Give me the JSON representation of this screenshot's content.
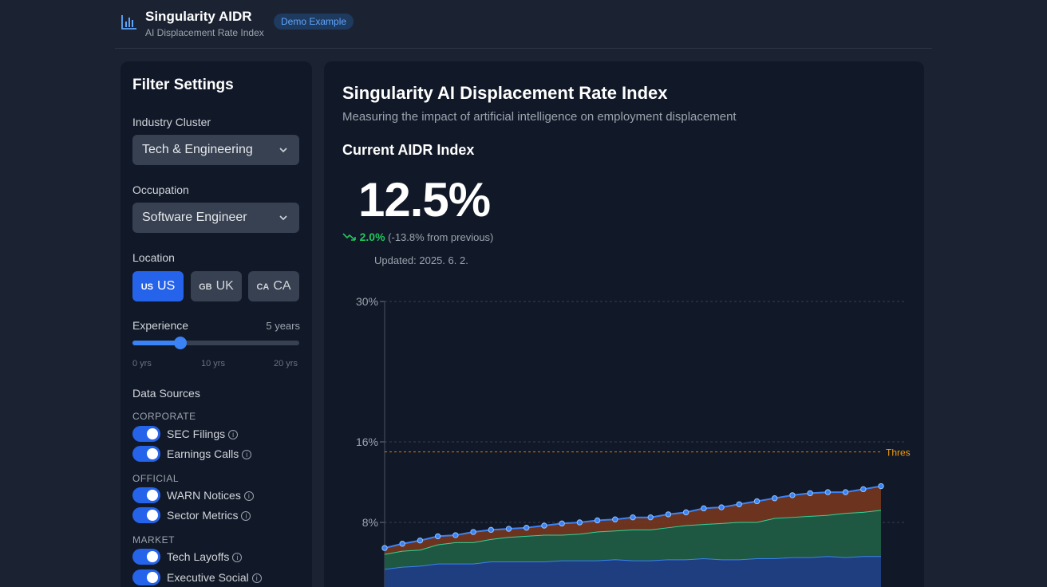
{
  "header": {
    "title": "Singularity AIDR",
    "subtitle": "AI Displacement Rate Index",
    "badge": "Demo Example",
    "logo_icon": "bar-chart-icon"
  },
  "sidebar": {
    "title": "Filter Settings",
    "industry": {
      "label": "Industry Cluster",
      "value": "Tech & Engineering"
    },
    "occupation": {
      "label": "Occupation",
      "value": "Software Engineer"
    },
    "location": {
      "label": "Location",
      "options": [
        {
          "code": "US",
          "label": "US",
          "active": true
        },
        {
          "code": "GB",
          "label": "UK",
          "active": false
        },
        {
          "code": "CA",
          "label": "CA",
          "active": false
        }
      ]
    },
    "experience": {
      "label": "Experience",
      "value_text": "5 years",
      "value": 5,
      "min": 0,
      "max": 20,
      "ticks": [
        "0 yrs",
        "10 yrs",
        "20 yrs"
      ]
    },
    "data_sources": {
      "label": "Data Sources",
      "groups": [
        {
          "name": "CORPORATE",
          "items": [
            {
              "label": "SEC Filings",
              "on": true
            },
            {
              "label": "Earnings Calls",
              "on": true
            }
          ]
        },
        {
          "name": "OFFICIAL",
          "items": [
            {
              "label": "WARN Notices",
              "on": true
            },
            {
              "label": "Sector Metrics",
              "on": true
            }
          ]
        },
        {
          "name": "MARKET",
          "items": [
            {
              "label": "Tech Layoffs",
              "on": true
            },
            {
              "label": "Executive Social",
              "on": true
            }
          ]
        }
      ]
    }
  },
  "main": {
    "title": "Singularity AI Displacement Rate Index",
    "subtitle": "Measuring the impact of artificial intelligence on employment displacement",
    "section_title": "Current AIDR Index",
    "index_value": "12.5%",
    "change_value": "2.0%",
    "change_text": "(-13.8% from previous)",
    "updated": "Updated: 2025. 6. 2.",
    "colors": {
      "positive": "#22c55e",
      "accent": "#3b82f6",
      "threshold": "#f59e0b"
    }
  },
  "chart_data": {
    "type": "area",
    "y_ticks": [
      "30%",
      "16%",
      "8%"
    ],
    "threshold_label": "Thres",
    "threshold": 15,
    "grid": true,
    "series": [
      {
        "values": [
          3.6,
          3.8,
          3.9,
          4.1,
          4.1,
          4.1,
          4.3,
          4.3,
          4.3,
          4.3,
          4.4,
          4.4,
          4.4,
          4.5,
          4.4,
          4.4,
          4.5,
          4.5,
          4.6,
          4.5,
          4.5,
          4.6,
          4.6,
          4.7,
          4.7,
          4.8,
          4.7,
          4.8,
          4.8
        ]
      },
      {
        "values": [
          5.0,
          5.3,
          5.4,
          5.9,
          6.1,
          6.1,
          6.4,
          6.6,
          6.7,
          6.8,
          6.8,
          6.9,
          7.1,
          7.2,
          7.3,
          7.3,
          7.5,
          7.7,
          7.8,
          7.9,
          8.0,
          8.0,
          8.4,
          8.5,
          8.6,
          8.7,
          8.9,
          9.0,
          9.2
        ]
      },
      {
        "values": [
          5.6,
          6.0,
          6.3,
          6.7,
          6.8,
          7.1,
          7.3,
          7.4,
          7.5,
          7.7,
          7.9,
          8.0,
          8.2,
          8.3,
          8.5,
          8.5,
          8.8,
          9.0,
          9.4,
          9.5,
          9.8,
          10.1,
          10.4,
          10.7,
          10.9,
          11.0,
          11.0,
          11.3,
          11.6
        ]
      }
    ]
  }
}
